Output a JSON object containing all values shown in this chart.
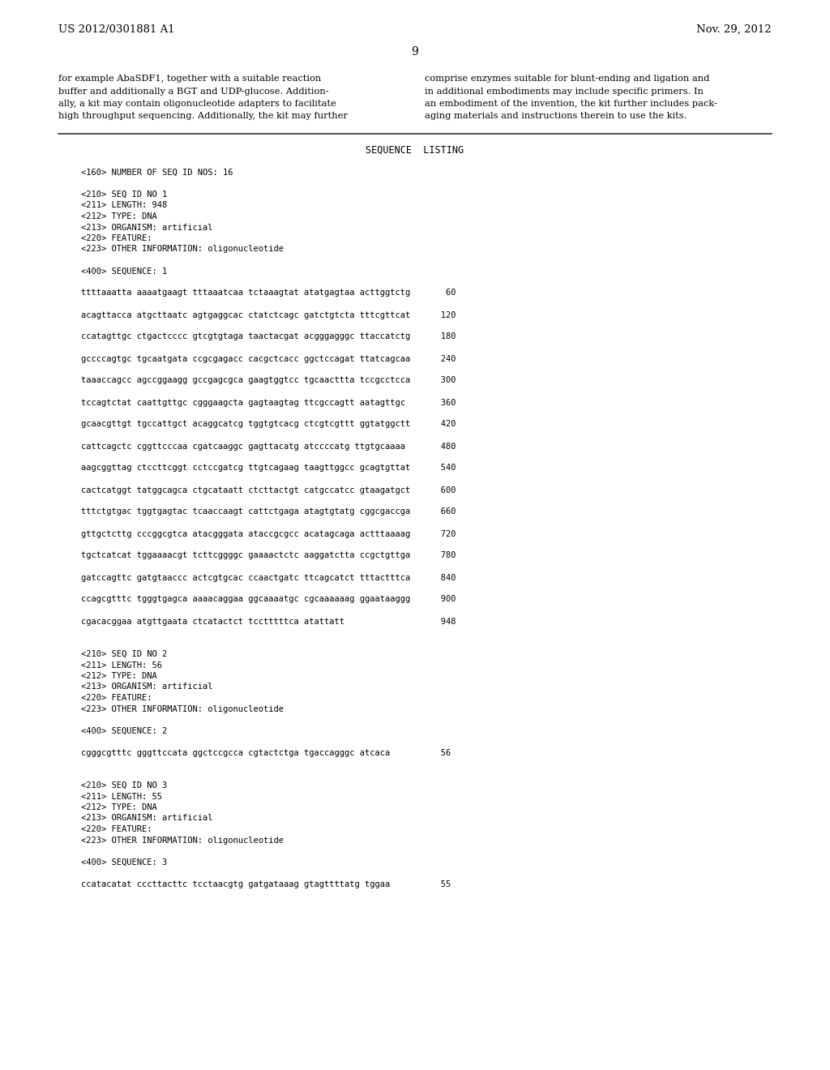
{
  "header_left": "US 2012/0301881 A1",
  "header_right": "Nov. 29, 2012",
  "page_number": "9",
  "background_color": "#ffffff",
  "text_color": "#000000",
  "col1_text": [
    "for example AbaSDF1, together with a suitable reaction",
    "buffer and additionally a BGT and UDP-glucose. Addition-",
    "ally, a kit may contain oligonucleotide adapters to facilitate",
    "high throughput sequencing. Additionally, the kit may further"
  ],
  "col2_text": [
    "comprise enzymes suitable for blunt-ending and ligation and",
    "in additional embodiments may include specific primers. In",
    "an embodiment of the invention, the kit further includes pack-",
    "aging materials and instructions therein to use the kits."
  ],
  "sequence_listing_title": "SEQUENCE  LISTING",
  "sequence_lines": [
    "<160> NUMBER OF SEQ ID NOS: 16",
    "",
    "<210> SEQ ID NO 1",
    "<211> LENGTH: 948",
    "<212> TYPE: DNA",
    "<213> ORGANISM: artificial",
    "<220> FEATURE:",
    "<223> OTHER INFORMATION: oligonucleotide",
    "",
    "<400> SEQUENCE: 1",
    "",
    "ttttaaatta aaaatgaagt tttaaatcaa tctaaagtat atatgagtaa acttggtctg       60",
    "",
    "acagttacca atgcttaatc agtgaggcac ctatctcagc gatctgtcta tttcgttcat      120",
    "",
    "ccatagttgc ctgactcccc gtcgtgtaga taactacgat acgggagggc ttaccatctg      180",
    "",
    "gccccagtgc tgcaatgata ccgcgagacc cacgctcacc ggctccagat ttatcagcaa      240",
    "",
    "taaaccagcc agccggaagg gccgagcgca gaagtggtcc tgcaacttta tccgcctcca      300",
    "",
    "tccagtctat caattgttgc cgggaagcta gagtaagtag ttcgccagtt aatagttgc       360",
    "",
    "gcaacgttgt tgccattgct acaggcatcg tggtgtcacg ctcgtcgttt ggtatggctt      420",
    "",
    "cattcagctc cggttcccaa cgatcaaggc gagttacatg atccccatg ttgtgcaaaa       480",
    "",
    "aagcggttag ctccttcggt cctccgatcg ttgtcagaag taagttggcc gcagtgttat      540",
    "",
    "cactcatggt tatggcagca ctgcataatt ctcttactgt catgccatcc gtaagatgct      600",
    "",
    "tttctgtgac tggtgagtac tcaaccaagt cattctgaga atagtgtatg cggcgaccga      660",
    "",
    "gttgctcttg cccggcgtca atacgggata ataccgcgcc acatagcaga actttaaaag      720",
    "",
    "tgctcatcat tggaaaacgt tcttcggggc gaaaactctc aaggatctta ccgctgttga      780",
    "",
    "gatccagttc gatgtaaccc actcgtgcac ccaactgatc ttcagcatct tttactttca      840",
    "",
    "ccagcgtttc tgggtgagca aaaacaggaa ggcaaaatgc cgcaaaaaag ggaataaggg      900",
    "",
    "cgacacggaa atgttgaata ctcatactct tcctttttca atattatt                   948",
    "",
    "",
    "<210> SEQ ID NO 2",
    "<211> LENGTH: 56",
    "<212> TYPE: DNA",
    "<213> ORGANISM: artificial",
    "<220> FEATURE:",
    "<223> OTHER INFORMATION: oligonucleotide",
    "",
    "<400> SEQUENCE: 2",
    "",
    "cgggcgtttc gggttccata ggctccgcca cgtactctga tgaccagggc atcaca          56",
    "",
    "",
    "<210> SEQ ID NO 3",
    "<211> LENGTH: 55",
    "<212> TYPE: DNA",
    "<213> ORGANISM: artificial",
    "<220> FEATURE:",
    "<223> OTHER INFORMATION: oligonucleotide",
    "",
    "<400> SEQUENCE: 3",
    "",
    "ccatacatat cccttacttc tcctaacgtg gatgataaag gtagttttatg tggaa          55"
  ]
}
